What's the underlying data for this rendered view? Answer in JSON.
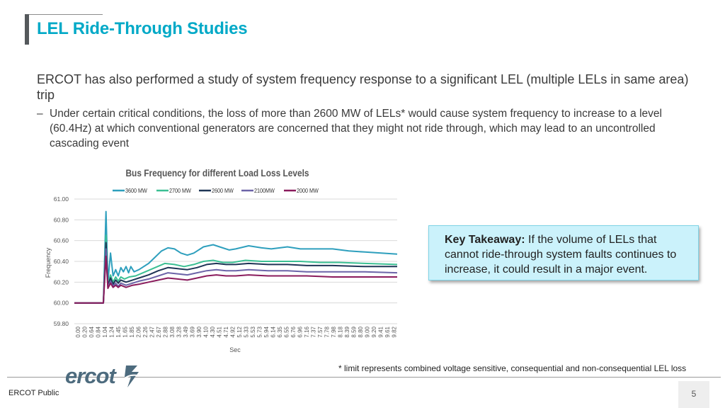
{
  "slide": {
    "title": "LEL Ride-Through Studies",
    "intro": "ERCOT has also performed a study of system frequency response to a significant LEL (multiple LELs in same area) trip",
    "sub_dash": "–",
    "sub_text": "Under certain critical conditions, the loss of more than 2600 MW of LELs* would cause system frequency to increase to a level (60.4Hz) at which conventional generators are concerned that they might not ride through, which may lead to an uncontrolled cascading event",
    "takeaway_label": "Key Takeaway:",
    "takeaway_text": "If the volume of LELs that cannot ride-through system faults continues to increase, it could result in a major event.",
    "footnote": "* limit represents combined voltage sensitive, consequential and non-consequential LEL loss",
    "logo_text": "ercot",
    "footer_label": "ERCOT Public",
    "page_number": "5"
  },
  "chart_data": {
    "type": "line",
    "title": "Bus Frequency for different Load Loss Levels",
    "xlabel": "Sec",
    "ylabel": "Frequency",
    "ylim": [
      59.8,
      61.0
    ],
    "yticks": [
      "61.00",
      "60.80",
      "60.60",
      "60.40",
      "60.20",
      "60.00",
      "59.80"
    ],
    "x_tick_labels": [
      "0.00",
      "0.20",
      "0.64",
      "0.84",
      "1.04",
      "1.24",
      "1.45",
      "1.65",
      "1.85",
      "2.06",
      "2.26",
      "2.47",
      "2.67",
      "2.88",
      "3.08",
      "3.28",
      "3.49",
      "3.69",
      "3.90",
      "4.10",
      "4.30",
      "4.51",
      "4.71",
      "4.92",
      "5.12",
      "5.33",
      "5.53",
      "5.73",
      "5.94",
      "6.14",
      "6.35",
      "6.55",
      "6.76",
      "6.96",
      "7.16",
      "7.37",
      "7.57",
      "7.78",
      "7.98",
      "8.18",
      "8.39",
      "8.59",
      "8.80",
      "9.00",
      "9.20",
      "9.41",
      "9.61",
      "9.82"
    ],
    "x_range": [
      0,
      10
    ],
    "grid": true,
    "legend": "top",
    "series": [
      {
        "name": "3600 MW",
        "color": "#2e9fbd",
        "points": [
          [
            0,
            60.0
          ],
          [
            0.9,
            60.0
          ],
          [
            0.98,
            60.88
          ],
          [
            1.04,
            60.2
          ],
          [
            1.12,
            60.48
          ],
          [
            1.2,
            60.26
          ],
          [
            1.28,
            60.32
          ],
          [
            1.36,
            60.26
          ],
          [
            1.44,
            60.34
          ],
          [
            1.52,
            60.3
          ],
          [
            1.6,
            60.35
          ],
          [
            1.68,
            60.29
          ],
          [
            1.75,
            60.35
          ],
          [
            1.85,
            60.3
          ],
          [
            2.0,
            60.32
          ],
          [
            2.3,
            60.38
          ],
          [
            2.5,
            60.44
          ],
          [
            2.7,
            60.5
          ],
          [
            2.9,
            60.53
          ],
          [
            3.1,
            60.52
          ],
          [
            3.3,
            60.48
          ],
          [
            3.5,
            60.46
          ],
          [
            3.7,
            60.48
          ],
          [
            4.0,
            60.54
          ],
          [
            4.3,
            60.56
          ],
          [
            4.5,
            60.54
          ],
          [
            4.8,
            60.51
          ],
          [
            5.0,
            60.52
          ],
          [
            5.4,
            60.55
          ],
          [
            5.8,
            60.53
          ],
          [
            6.1,
            60.52
          ],
          [
            6.6,
            60.54
          ],
          [
            7.0,
            60.52
          ],
          [
            7.4,
            60.52
          ],
          [
            8.0,
            60.52
          ],
          [
            8.5,
            60.5
          ],
          [
            9.0,
            60.49
          ],
          [
            9.5,
            60.48
          ],
          [
            10,
            60.47
          ]
        ]
      },
      {
        "name": "2700 MW",
        "color": "#3bbf93",
        "points": [
          [
            0,
            60.0
          ],
          [
            0.9,
            60.0
          ],
          [
            0.98,
            60.65
          ],
          [
            1.04,
            60.18
          ],
          [
            1.12,
            60.27
          ],
          [
            1.2,
            60.2
          ],
          [
            1.28,
            60.25
          ],
          [
            1.36,
            60.21
          ],
          [
            1.44,
            60.25
          ],
          [
            1.55,
            60.23
          ],
          [
            1.7,
            60.25
          ],
          [
            1.9,
            60.26
          ],
          [
            2.2,
            60.3
          ],
          [
            2.5,
            60.34
          ],
          [
            2.8,
            60.38
          ],
          [
            3.1,
            60.37
          ],
          [
            3.4,
            60.35
          ],
          [
            3.7,
            60.37
          ],
          [
            4.0,
            60.4
          ],
          [
            4.3,
            60.41
          ],
          [
            4.6,
            60.39
          ],
          [
            4.9,
            60.39
          ],
          [
            5.3,
            60.41
          ],
          [
            5.8,
            60.4
          ],
          [
            6.3,
            60.4
          ],
          [
            7.0,
            60.4
          ],
          [
            7.6,
            60.39
          ],
          [
            8.2,
            60.39
          ],
          [
            9.0,
            60.38
          ],
          [
            10,
            60.37
          ]
        ]
      },
      {
        "name": "2600 MW",
        "color": "#1f3556",
        "points": [
          [
            0,
            60.0
          ],
          [
            0.9,
            60.0
          ],
          [
            0.98,
            60.58
          ],
          [
            1.04,
            60.17
          ],
          [
            1.12,
            60.24
          ],
          [
            1.2,
            60.18
          ],
          [
            1.28,
            60.22
          ],
          [
            1.36,
            60.19
          ],
          [
            1.44,
            60.22
          ],
          [
            1.6,
            60.2
          ],
          [
            1.8,
            60.22
          ],
          [
            2.0,
            60.24
          ],
          [
            2.3,
            60.27
          ],
          [
            2.6,
            60.31
          ],
          [
            2.9,
            60.34
          ],
          [
            3.2,
            60.33
          ],
          [
            3.5,
            60.32
          ],
          [
            3.8,
            60.34
          ],
          [
            4.1,
            60.37
          ],
          [
            4.4,
            60.38
          ],
          [
            4.7,
            60.37
          ],
          [
            5.0,
            60.37
          ],
          [
            5.4,
            60.38
          ],
          [
            6.0,
            60.37
          ],
          [
            6.6,
            60.37
          ],
          [
            7.2,
            60.36
          ],
          [
            8.0,
            60.36
          ],
          [
            9.0,
            60.35
          ],
          [
            10,
            60.35
          ]
        ]
      },
      {
        "name": "2100MW",
        "color": "#6c64a8",
        "points": [
          [
            0,
            60.0
          ],
          [
            0.9,
            60.0
          ],
          [
            0.98,
            60.52
          ],
          [
            1.04,
            60.15
          ],
          [
            1.12,
            60.21
          ],
          [
            1.2,
            60.16
          ],
          [
            1.28,
            60.19
          ],
          [
            1.36,
            60.16
          ],
          [
            1.44,
            60.19
          ],
          [
            1.6,
            60.17
          ],
          [
            1.8,
            60.19
          ],
          [
            2.0,
            60.21
          ],
          [
            2.3,
            60.23
          ],
          [
            2.6,
            60.26
          ],
          [
            2.9,
            60.29
          ],
          [
            3.2,
            60.28
          ],
          [
            3.5,
            60.27
          ],
          [
            3.8,
            60.29
          ],
          [
            4.1,
            60.31
          ],
          [
            4.4,
            60.32
          ],
          [
            4.7,
            60.31
          ],
          [
            5.0,
            60.31
          ],
          [
            5.4,
            60.32
          ],
          [
            6.0,
            60.31
          ],
          [
            6.6,
            60.31
          ],
          [
            7.2,
            60.3
          ],
          [
            8.0,
            60.3
          ],
          [
            9.0,
            60.3
          ],
          [
            10,
            60.29
          ]
        ]
      },
      {
        "name": "2000 MW",
        "color": "#8a1b5c",
        "points": [
          [
            0,
            60.0
          ],
          [
            0.9,
            60.0
          ],
          [
            0.98,
            60.45
          ],
          [
            1.04,
            60.14
          ],
          [
            1.12,
            60.19
          ],
          [
            1.2,
            60.15
          ],
          [
            1.28,
            60.17
          ],
          [
            1.36,
            60.15
          ],
          [
            1.44,
            60.17
          ],
          [
            1.6,
            60.15
          ],
          [
            1.8,
            60.17
          ],
          [
            2.0,
            60.18
          ],
          [
            2.3,
            60.2
          ],
          [
            2.6,
            60.22
          ],
          [
            2.9,
            60.24
          ],
          [
            3.2,
            60.23
          ],
          [
            3.5,
            60.22
          ],
          [
            3.8,
            60.24
          ],
          [
            4.1,
            60.26
          ],
          [
            4.4,
            60.27
          ],
          [
            4.7,
            60.26
          ],
          [
            5.0,
            60.26
          ],
          [
            5.4,
            60.27
          ],
          [
            6.0,
            60.26
          ],
          [
            6.6,
            60.26
          ],
          [
            7.2,
            60.26
          ],
          [
            8.0,
            60.25
          ],
          [
            9.0,
            60.25
          ],
          [
            10,
            60.25
          ]
        ]
      }
    ]
  },
  "colors": {
    "accent": "#00a9c7",
    "takeaway_bg": "#cbf2fb",
    "logo": "#4d6b7e"
  }
}
